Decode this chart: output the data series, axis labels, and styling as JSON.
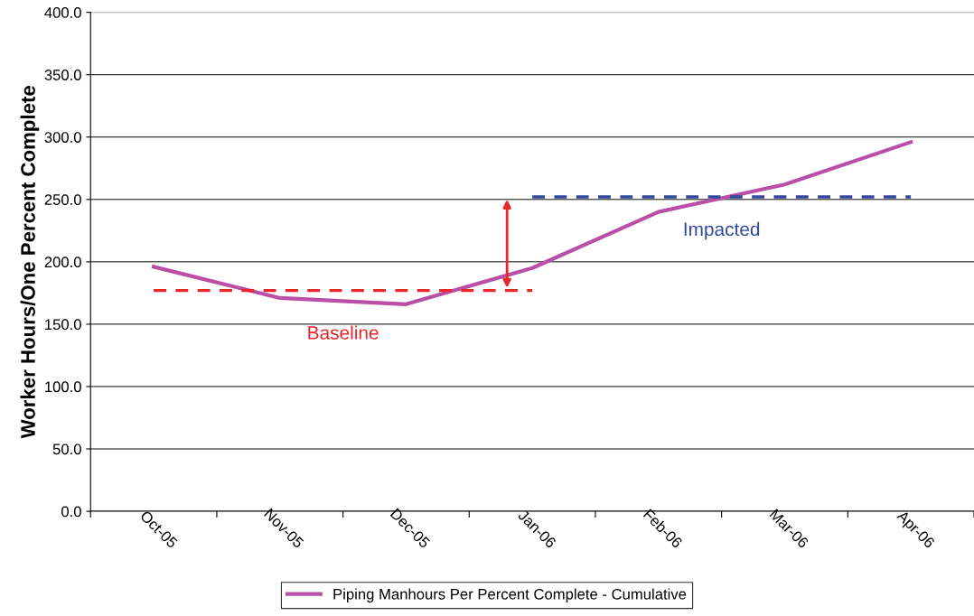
{
  "chart_data": {
    "type": "line",
    "ylabel": "Worker Hours/One Percent Complete",
    "categories": [
      "Oct-05",
      "Nov-05",
      "Dec-05",
      "Jan-06",
      "Feb-06",
      "Mar-06",
      "Apr-06"
    ],
    "series": [
      {
        "name": "Piping Manhours Per Percent Complete - Cumulative",
        "color": "#b94fa6",
        "values": [
          196,
          171,
          166,
          195,
          240,
          262,
          296
        ],
        "line_style": "solid"
      },
      {
        "name": "Baseline",
        "color": "#e8262b",
        "values": [
          177,
          177,
          177,
          177,
          null,
          null,
          null
        ],
        "line_style": "dashed"
      },
      {
        "name": "Impacted",
        "color": "#33489c",
        "values": [
          null,
          null,
          null,
          252,
          252,
          252,
          252
        ],
        "line_style": "dashed"
      }
    ],
    "ylim": [
      0,
      400
    ],
    "yticks": [
      {
        "value": 0,
        "label": "0.0"
      },
      {
        "value": 50,
        "label": "50.0"
      },
      {
        "value": 100,
        "label": "100.0"
      },
      {
        "value": 150,
        "label": "150.0"
      },
      {
        "value": 200,
        "label": "200.0"
      },
      {
        "value": 250,
        "label": "250.0"
      },
      {
        "value": 300,
        "label": "300.0"
      },
      {
        "value": 350,
        "label": "350.0"
      },
      {
        "value": 400,
        "label": "400.0"
      }
    ],
    "grid": "y",
    "legend": "bottom",
    "marker": "none"
  }
}
